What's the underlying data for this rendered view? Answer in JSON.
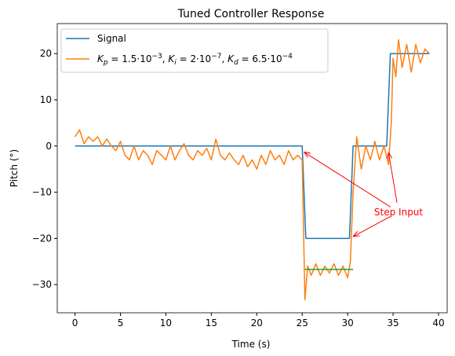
{
  "chart_data": {
    "type": "line",
    "title": "Tuned Controller Response",
    "xlabel": "Time (s)",
    "ylabel": "Pitch (°)",
    "xlim": [
      -1.95,
      40.95
    ],
    "ylim": [
      -36.1,
      26.5
    ],
    "xticks": [
      0,
      5,
      10,
      15,
      20,
      25,
      30,
      35,
      40
    ],
    "yticks": [
      {
        "value": -30,
        "label": "−30"
      },
      {
        "value": -20,
        "label": "−20"
      },
      {
        "value": -10,
        "label": "−10"
      },
      0,
      10,
      20
    ],
    "legend": "upper left",
    "series": [
      {
        "name": "Signal",
        "color": "#1f77b4",
        "x": [
          0,
          25,
          25.4,
          30.2,
          30.6,
          34.3,
          34.7,
          39
        ],
        "values": [
          0,
          0,
          -20,
          -20,
          0,
          0,
          20,
          20
        ]
      },
      {
        "name": "Kp = 1.5·10−3, Ki = 2·10−7, Kd = 6.5·10−4",
        "color": "#ff7f0e",
        "x": [
          0,
          0.5,
          1,
          1.5,
          2,
          2.5,
          3,
          3.5,
          4,
          4.5,
          5,
          5.5,
          6,
          6.5,
          7,
          7.5,
          8,
          8.5,
          9,
          9.5,
          10,
          10.5,
          11,
          11.5,
          12,
          12.5,
          13,
          13.5,
          14,
          14.5,
          15,
          15.5,
          16,
          16.5,
          17,
          17.5,
          18,
          18.5,
          19,
          19.5,
          20,
          20.5,
          21,
          21.5,
          22,
          22.5,
          23,
          23.5,
          24,
          24.5,
          25,
          25.3,
          25.6,
          26,
          26.5,
          27,
          27.5,
          28,
          28.5,
          29,
          29.5,
          30,
          30.3,
          30.6,
          30.8,
          31,
          31.5,
          32,
          32.5,
          33,
          33.5,
          34,
          34.5,
          34.8,
          35,
          35.3,
          35.6,
          36,
          36.5,
          37,
          37.5,
          38,
          38.5,
          39
        ],
        "values": [
          2,
          3.5,
          0.5,
          2,
          1,
          2,
          0,
          1.5,
          0,
          -1,
          1,
          -2,
          -3,
          0,
          -3,
          -1,
          -2,
          -4,
          -1,
          -2,
          -3,
          0,
          -3,
          -1,
          0.5,
          -2,
          -3,
          -1,
          -2,
          -0.5,
          -3,
          1.5,
          -2,
          -3,
          -1.5,
          -3,
          -4,
          -2,
          -4.5,
          -3,
          -5,
          -2,
          -4,
          -1,
          -3,
          -2,
          -4,
          -1,
          -3,
          -2,
          -3,
          -33.3,
          -26,
          -28,
          -25.5,
          -28,
          -26,
          -27.5,
          -25.5,
          -28,
          -26,
          -28.5,
          -25,
          -10,
          -4,
          2,
          -5,
          0,
          -3,
          1,
          -3,
          0,
          -4,
          5,
          19,
          15,
          23,
          17,
          22,
          16,
          22,
          18,
          21,
          20
        ]
      }
    ],
    "reference_line": {
      "color": "#2ca02c",
      "x": [
        25.3,
        30.6
      ],
      "values": [
        -26.7,
        -26.7
      ]
    },
    "annotation": {
      "text": "Step Input",
      "color": "#ff0000",
      "xytext": [
        35.6,
        -14.3
      ],
      "targets": [
        [
          25.2,
          -1.3
        ],
        [
          30.6,
          -19.6
        ],
        [
          34.5,
          -1.4
        ]
      ]
    }
  }
}
